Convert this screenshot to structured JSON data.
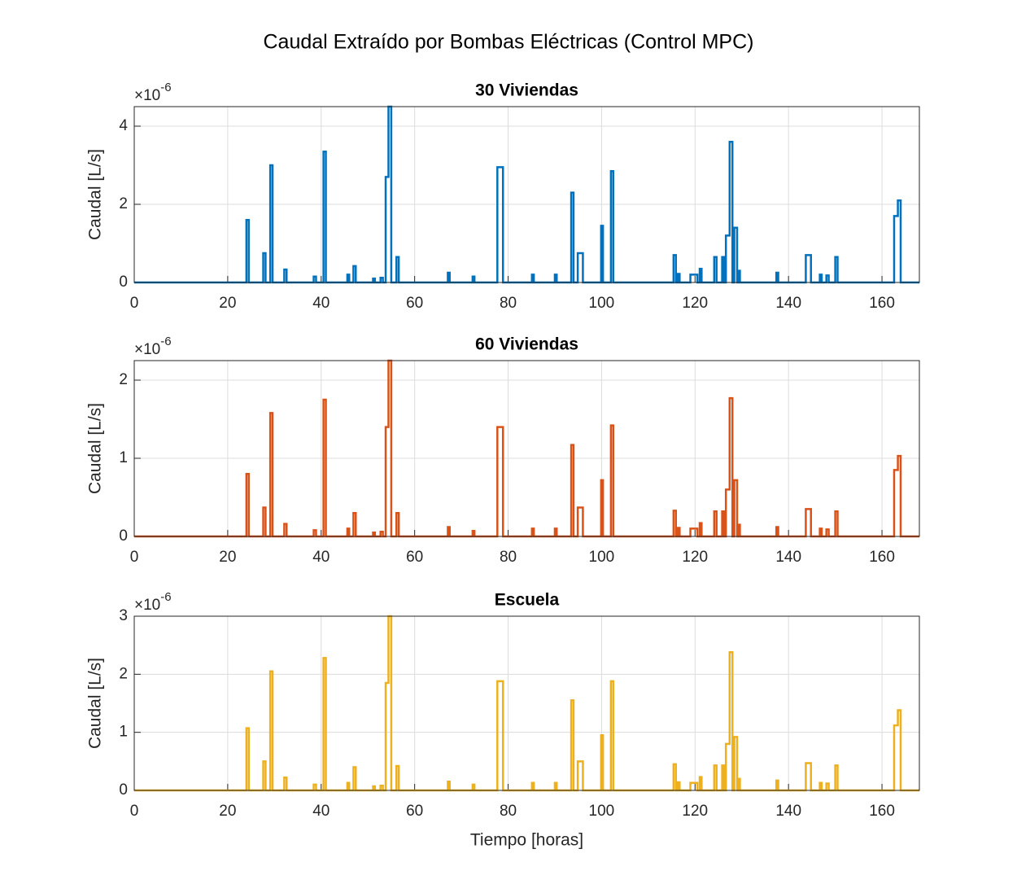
{
  "title": "Caudal Extraído por Bombas Eléctricas (Control MPC)",
  "chart_data": [
    {
      "type": "line",
      "title": "30 Viviendas",
      "ylabel": "Caudal [L/s]",
      "y_multiplier": {
        "base": "×10",
        "exponent": "-6"
      },
      "color": "#0072BD",
      "grid": true,
      "xlim": [
        0,
        168
      ],
      "xticks": [
        0,
        20,
        40,
        60,
        80,
        100,
        120,
        140,
        160
      ],
      "ylim": [
        0,
        4.5
      ],
      "yticks": [
        0,
        2,
        4
      ],
      "x": [
        0,
        24,
        24,
        24.5,
        24.5,
        27.6,
        27.6,
        28.1,
        28.1,
        29.1,
        29.1,
        29.6,
        29.6,
        32.1,
        32.1,
        32.6,
        32.6,
        38.4,
        38.4,
        38.9,
        38.9,
        40.5,
        40.5,
        41,
        41,
        45.6,
        45.6,
        46,
        46,
        46.9,
        46.9,
        47.4,
        47.4,
        51.1,
        51.1,
        51.5,
        51.5,
        52.7,
        52.7,
        53.2,
        53.2,
        53.8,
        53.8,
        54.4,
        54.4,
        55,
        55,
        56.1,
        56.1,
        56.6,
        56.6,
        67.1,
        67.1,
        67.5,
        67.5,
        72.4,
        72.4,
        72.8,
        72.8,
        77.7,
        77.7,
        78.9,
        78.9,
        85.1,
        85.1,
        85.5,
        85.5,
        90,
        90,
        90.4,
        90.4,
        93.5,
        93.5,
        94,
        94,
        94.9,
        94.9,
        96,
        96,
        99.9,
        99.9,
        100.3,
        100.3,
        102,
        102,
        102.5,
        102.5,
        115.4,
        115.4,
        115.9,
        115.9,
        116.3,
        116.3,
        116.7,
        116.7,
        119,
        119,
        120.5,
        120.5,
        121,
        121,
        121.4,
        121.4,
        124.1,
        124.1,
        124.6,
        124.6,
        125.8,
        125.8,
        126.2,
        126.2,
        126.6,
        126.6,
        127.4,
        127.4,
        128,
        128,
        128.4,
        128.4,
        129,
        129,
        129.2,
        129.2,
        129.6,
        129.6,
        137.4,
        137.4,
        137.8,
        137.8,
        143.7,
        143.7,
        144.8,
        144.8,
        146.7,
        146.7,
        147.1,
        147.1,
        148.1,
        148.1,
        148.6,
        148.6,
        150,
        150,
        150.5,
        150.5,
        162.6,
        162.6,
        163.4,
        163.4,
        164,
        164,
        168
      ],
      "values": [
        0,
        0,
        1.6,
        1.6,
        0,
        0,
        0.75,
        0.75,
        0,
        0,
        3,
        3,
        0,
        0,
        0.33,
        0.33,
        0,
        0,
        0.15,
        0.15,
        0,
        0,
        3.35,
        3.35,
        0,
        0,
        0.2,
        0.2,
        0,
        0,
        0.42,
        0.42,
        0,
        0,
        0.1,
        0.1,
        0,
        0,
        0.12,
        0.12,
        0,
        0,
        2.7,
        2.7,
        4.5,
        4.5,
        0,
        0,
        0.65,
        0.65,
        0,
        0,
        0.25,
        0.25,
        0,
        0,
        0.15,
        0.15,
        0,
        0,
        2.95,
        2.95,
        0,
        0,
        0.2,
        0.2,
        0,
        0,
        0.2,
        0.2,
        0,
        0,
        2.3,
        2.3,
        0,
        0,
        0.75,
        0.75,
        0,
        0,
        1.45,
        1.45,
        0,
        0,
        2.85,
        2.85,
        0,
        0,
        0.7,
        0.7,
        0,
        0,
        0.22,
        0.22,
        0,
        0,
        0.2,
        0.2,
        0,
        0,
        0.35,
        0.35,
        0,
        0,
        0.65,
        0.65,
        0,
        0,
        0.65,
        0.65,
        0,
        0,
        1.2,
        1.2,
        3.6,
        3.6,
        0,
        0,
        1.4,
        1.4,
        0,
        0,
        0.3,
        0.3,
        0,
        0,
        0.25,
        0.25,
        0,
        0,
        0.7,
        0.7,
        0,
        0,
        0.2,
        0.2,
        0,
        0,
        0.18,
        0.18,
        0,
        0,
        0.65,
        0.65,
        0,
        0,
        1.7,
        1.7,
        2.1,
        2.1,
        0,
        0
      ]
    },
    {
      "type": "line",
      "title": "60 Viviendas",
      "ylabel": "Caudal [L/s]",
      "y_multiplier": {
        "base": "×10",
        "exponent": "-6"
      },
      "color": "#D95319",
      "grid": true,
      "xlim": [
        0,
        168
      ],
      "xticks": [
        0,
        20,
        40,
        60,
        80,
        100,
        120,
        140,
        160
      ],
      "ylim": [
        0,
        2.25
      ],
      "yticks": [
        0,
        1,
        2
      ],
      "x": [
        0,
        24,
        24,
        24.5,
        24.5,
        27.6,
        27.6,
        28.1,
        28.1,
        29.1,
        29.1,
        29.6,
        29.6,
        32.1,
        32.1,
        32.6,
        32.6,
        38.4,
        38.4,
        38.9,
        38.9,
        40.5,
        40.5,
        41,
        41,
        45.6,
        45.6,
        46,
        46,
        46.9,
        46.9,
        47.4,
        47.4,
        51.1,
        51.1,
        51.5,
        51.5,
        52.7,
        52.7,
        53.2,
        53.2,
        53.8,
        53.8,
        54.4,
        54.4,
        55,
        55,
        56.1,
        56.1,
        56.6,
        56.6,
        67.1,
        67.1,
        67.5,
        67.5,
        72.4,
        72.4,
        72.8,
        72.8,
        77.7,
        77.7,
        78.9,
        78.9,
        85.1,
        85.1,
        85.5,
        85.5,
        90,
        90,
        90.4,
        90.4,
        93.5,
        93.5,
        94,
        94,
        94.9,
        94.9,
        96,
        96,
        99.9,
        99.9,
        100.3,
        100.3,
        102,
        102,
        102.5,
        102.5,
        115.4,
        115.4,
        115.9,
        115.9,
        116.3,
        116.3,
        116.7,
        116.7,
        119,
        119,
        120.5,
        120.5,
        121,
        121,
        121.4,
        121.4,
        124.1,
        124.1,
        124.6,
        124.6,
        125.8,
        125.8,
        126.2,
        126.2,
        126.6,
        126.6,
        127.4,
        127.4,
        128,
        128,
        128.4,
        128.4,
        129,
        129,
        129.2,
        129.2,
        129.6,
        129.6,
        137.4,
        137.4,
        137.8,
        137.8,
        143.7,
        143.7,
        144.8,
        144.8,
        146.7,
        146.7,
        147.1,
        147.1,
        148.1,
        148.1,
        148.6,
        148.6,
        150,
        150,
        150.5,
        150.5,
        162.6,
        162.6,
        163.4,
        163.4,
        164,
        164,
        168
      ],
      "values": [
        0,
        0,
        0.8,
        0.8,
        0,
        0,
        0.37,
        0.37,
        0,
        0,
        1.58,
        1.58,
        0,
        0,
        0.16,
        0.16,
        0,
        0,
        0.08,
        0.08,
        0,
        0,
        1.75,
        1.75,
        0,
        0,
        0.1,
        0.1,
        0,
        0,
        0.3,
        0.3,
        0,
        0,
        0.05,
        0.05,
        0,
        0,
        0.06,
        0.06,
        0,
        0,
        1.4,
        1.4,
        2.25,
        2.25,
        0,
        0,
        0.3,
        0.3,
        0,
        0,
        0.12,
        0.12,
        0,
        0,
        0.07,
        0.07,
        0,
        0,
        1.4,
        1.4,
        0,
        0,
        0.1,
        0.1,
        0,
        0,
        0.1,
        0.1,
        0,
        0,
        1.17,
        1.17,
        0,
        0,
        0.37,
        0.37,
        0,
        0,
        0.72,
        0.72,
        0,
        0,
        1.42,
        1.42,
        0,
        0,
        0.33,
        0.33,
        0,
        0,
        0.11,
        0.11,
        0,
        0,
        0.1,
        0.1,
        0,
        0,
        0.17,
        0.17,
        0,
        0,
        0.32,
        0.32,
        0,
        0,
        0.32,
        0.32,
        0,
        0,
        0.6,
        0.6,
        1.77,
        1.77,
        0,
        0,
        0.72,
        0.72,
        0,
        0,
        0.15,
        0.15,
        0,
        0,
        0.12,
        0.12,
        0,
        0,
        0.35,
        0.35,
        0,
        0,
        0.1,
        0.1,
        0,
        0,
        0.09,
        0.09,
        0,
        0,
        0.32,
        0.32,
        0,
        0,
        0.85,
        0.85,
        1.03,
        1.03,
        0,
        0
      ]
    },
    {
      "type": "line",
      "title": "Escuela",
      "ylabel": "Caudal [L/s]",
      "xlabel": "Tiempo [horas]",
      "y_multiplier": {
        "base": "×10",
        "exponent": "-6"
      },
      "color": "#EDB120",
      "grid": true,
      "xlim": [
        0,
        168
      ],
      "xticks": [
        0,
        20,
        40,
        60,
        80,
        100,
        120,
        140,
        160
      ],
      "ylim": [
        0,
        3
      ],
      "yticks": [
        0,
        1,
        2,
        3
      ],
      "x": [
        0,
        24,
        24,
        24.5,
        24.5,
        27.6,
        27.6,
        28.1,
        28.1,
        29.1,
        29.1,
        29.6,
        29.6,
        32.1,
        32.1,
        32.6,
        32.6,
        38.4,
        38.4,
        38.9,
        38.9,
        40.5,
        40.5,
        41,
        41,
        45.6,
        45.6,
        46,
        46,
        46.9,
        46.9,
        47.4,
        47.4,
        51.1,
        51.1,
        51.5,
        51.5,
        52.7,
        52.7,
        53.2,
        53.2,
        53.8,
        53.8,
        54.4,
        54.4,
        55,
        55,
        56.1,
        56.1,
        56.6,
        56.6,
        67.1,
        67.1,
        67.5,
        67.5,
        72.4,
        72.4,
        72.8,
        72.8,
        77.7,
        77.7,
        78.9,
        78.9,
        85.1,
        85.1,
        85.5,
        85.5,
        90,
        90,
        90.4,
        90.4,
        93.5,
        93.5,
        94,
        94,
        94.9,
        94.9,
        96,
        96,
        99.9,
        99.9,
        100.3,
        100.3,
        102,
        102,
        102.5,
        102.5,
        115.4,
        115.4,
        115.9,
        115.9,
        116.3,
        116.3,
        116.7,
        116.7,
        119,
        119,
        120.5,
        120.5,
        121,
        121,
        121.4,
        121.4,
        124.1,
        124.1,
        124.6,
        124.6,
        125.8,
        125.8,
        126.2,
        126.2,
        126.6,
        126.6,
        127.4,
        127.4,
        128,
        128,
        128.4,
        128.4,
        129,
        129,
        129.2,
        129.2,
        129.6,
        129.6,
        137.4,
        137.4,
        137.8,
        137.8,
        143.7,
        143.7,
        144.8,
        144.8,
        146.7,
        146.7,
        147.1,
        147.1,
        148.1,
        148.1,
        148.6,
        148.6,
        150,
        150,
        150.5,
        150.5,
        162.6,
        162.6,
        163.4,
        163.4,
        164,
        164,
        168
      ],
      "values": [
        0,
        0,
        1.07,
        1.07,
        0,
        0,
        0.5,
        0.5,
        0,
        0,
        2.05,
        2.05,
        0,
        0,
        0.22,
        0.22,
        0,
        0,
        0.1,
        0.1,
        0,
        0,
        2.28,
        2.28,
        0,
        0,
        0.13,
        0.13,
        0,
        0,
        0.4,
        0.4,
        0,
        0,
        0.07,
        0.07,
        0,
        0,
        0.08,
        0.08,
        0,
        0,
        1.85,
        1.85,
        3,
        3,
        0,
        0,
        0.42,
        0.42,
        0,
        0,
        0.15,
        0.15,
        0,
        0,
        0.1,
        0.1,
        0,
        0,
        1.88,
        1.88,
        0,
        0,
        0.13,
        0.13,
        0,
        0,
        0.13,
        0.13,
        0,
        0,
        1.55,
        1.55,
        0,
        0,
        0.5,
        0.5,
        0,
        0,
        0.95,
        0.95,
        0,
        0,
        1.88,
        1.88,
        0,
        0,
        0.45,
        0.45,
        0,
        0,
        0.14,
        0.14,
        0,
        0,
        0.13,
        0.13,
        0,
        0,
        0.23,
        0.23,
        0,
        0,
        0.43,
        0.43,
        0,
        0,
        0.43,
        0.43,
        0,
        0,
        0.8,
        0.8,
        2.38,
        2.38,
        0,
        0,
        0.92,
        0.92,
        0,
        0,
        0.2,
        0.2,
        0,
        0,
        0.17,
        0.17,
        0,
        0,
        0.47,
        0.47,
        0,
        0,
        0.13,
        0.13,
        0,
        0,
        0.12,
        0.12,
        0,
        0,
        0.43,
        0.43,
        0,
        0,
        1.12,
        1.12,
        1.38,
        1.38,
        0,
        0
      ]
    }
  ]
}
